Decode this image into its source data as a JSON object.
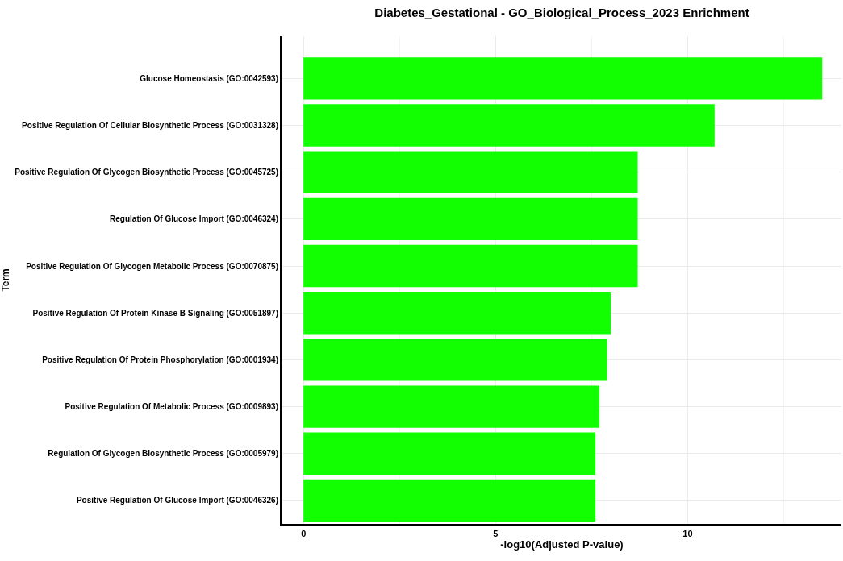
{
  "chart_data": {
    "type": "bar",
    "orientation": "horizontal",
    "title": "Diabetes_Gestational - GO_Biological_Process_2023 Enrichment",
    "xlabel": "-log10(Adjusted P-value)",
    "ylabel": "Term",
    "categories": [
      "Glucose Homeostasis (GO:0042593)",
      "Positive Regulation Of Cellular Biosynthetic Process (GO:0031328)",
      "Positive Regulation Of Glycogen Biosynthetic Process (GO:0045725)",
      "Regulation Of Glucose Import (GO:0046324)",
      "Positive Regulation Of Glycogen Metabolic Process (GO:0070875)",
      "Positive Regulation Of Protein Kinase B Signaling (GO:0051897)",
      "Positive Regulation Of Protein Phosphorylation (GO:0001934)",
      "Positive Regulation Of Metabolic Process (GO:0009893)",
      "Regulation Of Glycogen Biosynthetic Process (GO:0005979)",
      "Positive Regulation Of Glucose Import (GO:0046326)"
    ],
    "values": [
      13.5,
      10.7,
      8.7,
      8.7,
      8.7,
      8.0,
      7.9,
      7.7,
      7.6,
      7.6
    ],
    "color": "#11ff00",
    "xlim": [
      -0.55,
      14.0
    ],
    "xticks": [
      0,
      {
        "value": 2.5,
        "label": null
      },
      5,
      {
        "value": 7.5,
        "label": null
      },
      10,
      {
        "value": 12.5,
        "label": null
      }
    ],
    "grid": true
  }
}
